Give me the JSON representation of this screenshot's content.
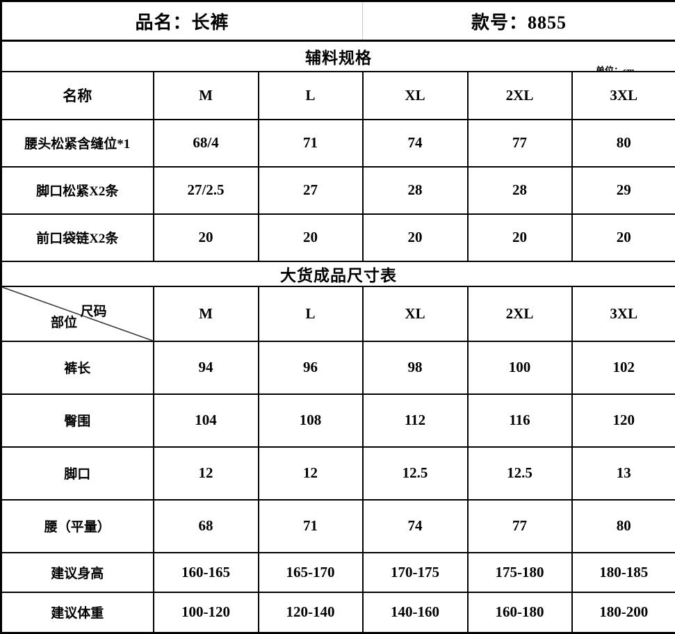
{
  "header": {
    "product_label": "品名：长裤",
    "style_label": "款号：8855"
  },
  "section1": {
    "title": "辅料规格",
    "unit_note": "单位：cm",
    "columns": [
      "名称",
      "M",
      "L",
      "XL",
      "2XL",
      "3XL"
    ],
    "rows": [
      {
        "label": "腰头松紧含缝位*1",
        "values": [
          "68/4",
          "71",
          "74",
          "77",
          "80"
        ]
      },
      {
        "label": "脚口松紧X2条",
        "values": [
          "27/2.5",
          "27",
          "28",
          "28",
          "29"
        ]
      },
      {
        "label": "前口袋链X2条",
        "values": [
          "20",
          "20",
          "20",
          "20",
          "20"
        ]
      }
    ]
  },
  "section2": {
    "title": "大货成品尺寸表",
    "corner": {
      "top": "尺码",
      "bottom": "部位"
    },
    "columns": [
      "M",
      "L",
      "XL",
      "2XL",
      "3XL"
    ],
    "rows": [
      {
        "label": "裤长",
        "values": [
          "94",
          "96",
          "98",
          "100",
          "102"
        ]
      },
      {
        "label": "臀围",
        "values": [
          "104",
          "108",
          "112",
          "116",
          "120"
        ]
      },
      {
        "label": "脚口",
        "values": [
          "12",
          "12",
          "12.5",
          "12.5",
          "13"
        ]
      },
      {
        "label": "腰（平量）",
        "values": [
          "68",
          "71",
          "74",
          "77",
          "80"
        ]
      },
      {
        "label": "建议身高",
        "values": [
          "160-165",
          "165-170",
          "170-175",
          "175-180",
          "180-185"
        ]
      },
      {
        "label": "建议体重",
        "values": [
          "100-120",
          "120-140",
          "140-160",
          "160-180",
          "180-200"
        ]
      }
    ]
  },
  "marker": {
    "row_label": "腰（平量）",
    "column": "M",
    "color": "#2b9348"
  },
  "colors": {
    "border": "#000000",
    "title_divider": "#c9c9c9",
    "background": "#ffffff",
    "text": "#000000"
  }
}
